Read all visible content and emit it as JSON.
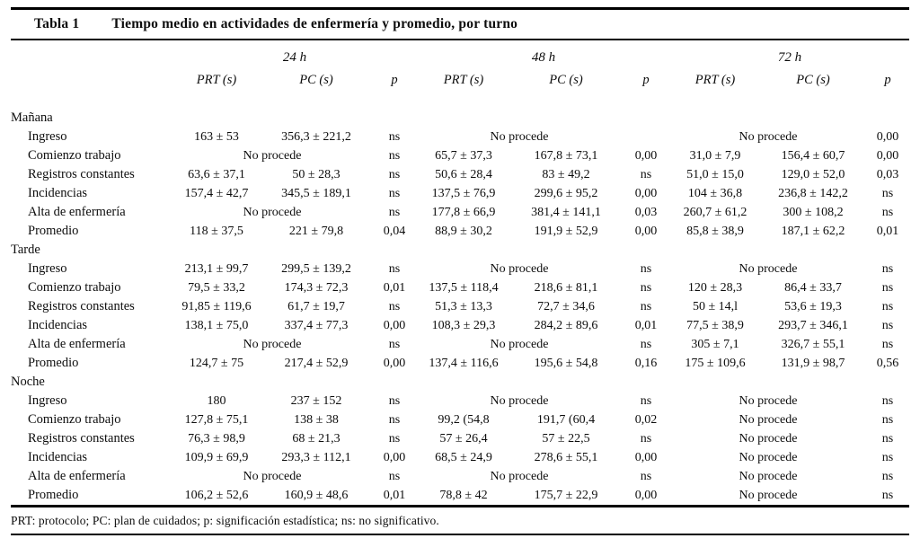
{
  "table": {
    "label": "Tabla 1",
    "title": "Tiempo medio en actividades de enfermería y promedio, por turno",
    "col_groups": [
      "24 h",
      "48 h",
      "72 h"
    ],
    "sub_headers": [
      "PRT (s)",
      "PC (s)",
      "p"
    ],
    "no_data_text": "No procede",
    "sections": [
      {
        "name": "Mañana",
        "rows": [
          {
            "label": "Ingreso",
            "g24": {
              "prt": "163 ± 53",
              "pc": "356,3 ± 221,2",
              "p": "ns"
            },
            "g48": {
              "noproc": true,
              "p": ""
            },
            "g72": {
              "noproc": true,
              "p": "0,00"
            }
          },
          {
            "label": "Comienzo trabajo",
            "g24": {
              "noproc": true,
              "p": "ns"
            },
            "g48": {
              "prt": "65,7 ± 37,3",
              "pc": "167,8 ± 73,1",
              "p": "0,00"
            },
            "g72": {
              "prt": "31,0 ± 7,9",
              "pc": "156,4 ± 60,7",
              "p": "0,00"
            }
          },
          {
            "label": "Registros constantes",
            "g24": {
              "prt": "63,6 ± 37,1",
              "pc": "50 ± 28,3",
              "p": "ns"
            },
            "g48": {
              "prt": "50,6 ± 28,4",
              "pc": "83 ± 49,2",
              "p": "ns"
            },
            "g72": {
              "prt": "51,0 ± 15,0",
              "pc": "129,0 ± 52,0",
              "p": "0,03"
            }
          },
          {
            "label": "Incidencias",
            "g24": {
              "prt": "157,4 ± 42,7",
              "pc": "345,5 ± 189,1",
              "p": "ns"
            },
            "g48": {
              "prt": "137,5 ± 76,9",
              "pc": "299,6 ± 95,2",
              "p": "0,00"
            },
            "g72": {
              "prt": "104 ± 36,8",
              "pc": "236,8 ± 142,2",
              "p": "ns"
            }
          },
          {
            "label": "Alta de enfermería",
            "g24": {
              "noproc": true,
              "p": "ns"
            },
            "g48": {
              "prt": "177,8 ± 66,9",
              "pc": "381,4 ± 141,1",
              "p": "0,03"
            },
            "g72": {
              "prt": "260,7 ± 61,2",
              "pc": "300 ± 108,2",
              "p": "ns"
            }
          },
          {
            "label": "Promedio",
            "g24": {
              "prt": "118 ± 37,5",
              "pc": "221 ± 79,8",
              "p": "0,04"
            },
            "g48": {
              "prt": "88,9 ± 30,2",
              "pc": "191,9 ± 52,9",
              "p": "0,00"
            },
            "g72": {
              "prt": "85,8 ± 38,9",
              "pc": "187,1 ± 62,2",
              "p": "0,01"
            }
          }
        ]
      },
      {
        "name": "Tarde",
        "rows": [
          {
            "label": "Ingreso",
            "g24": {
              "prt": "213,1 ± 99,7",
              "pc": "299,5 ± 139,2",
              "p": "ns"
            },
            "g48": {
              "noproc": true,
              "p": "ns"
            },
            "g72": {
              "noproc": true,
              "p": "ns"
            }
          },
          {
            "label": "Comienzo trabajo",
            "g24": {
              "prt": "79,5 ± 33,2",
              "pc": "174,3 ± 72,3",
              "p": "0,01"
            },
            "g48": {
              "prt": "137,5 ± 118,4",
              "pc": "218,6 ± 81,1",
              "p": "ns"
            },
            "g72": {
              "prt": "120 ± 28,3",
              "pc": "86,4 ± 33,7",
              "p": "ns"
            }
          },
          {
            "label": "Registros constantes",
            "g24": {
              "prt": "91,85 ± 119,6",
              "pc": "61,7 ± 19,7",
              "p": "ns"
            },
            "g48": {
              "prt": "51,3 ± 13,3",
              "pc": "72,7 ± 34,6",
              "p": "ns"
            },
            "g72": {
              "prt": "50 ± 14,l",
              "pc": "53,6 ± 19,3",
              "p": "ns"
            }
          },
          {
            "label": "Incidencias",
            "g24": {
              "prt": "138,1 ± 75,0",
              "pc": "337,4 ± 77,3",
              "p": "0,00"
            },
            "g48": {
              "prt": "108,3 ± 29,3",
              "pc": "284,2 ± 89,6",
              "p": "0,01"
            },
            "g72": {
              "prt": "77,5 ± 38,9",
              "pc": "293,7 ± 346,1",
              "p": "ns"
            }
          },
          {
            "label": "Alta de enfermería",
            "g24": {
              "noproc": true,
              "p": "ns"
            },
            "g48": {
              "noproc": true,
              "p": "ns"
            },
            "g72": {
              "prt": "305 ± 7,1",
              "pc": "326,7 ± 55,1",
              "p": "ns"
            }
          },
          {
            "label": "Promedio",
            "g24": {
              "prt": "124,7 ± 75",
              "pc": "217,4 ± 52,9",
              "p": "0,00"
            },
            "g48": {
              "prt": "137,4 ± 116,6",
              "pc": "195,6 ± 54,8",
              "p": "0,16"
            },
            "g72": {
              "prt": "175 ± 109,6",
              "pc": "131,9 ± 98,7",
              "p": "0,56"
            }
          }
        ]
      },
      {
        "name": "Noche",
        "rows": [
          {
            "label": "Ingreso",
            "g24": {
              "prt": "180",
              "pc": "237 ± 152",
              "p": "ns"
            },
            "g48": {
              "noproc": true,
              "p": "ns"
            },
            "g72": {
              "noproc": true,
              "p": "ns"
            }
          },
          {
            "label": "Comienzo trabajo",
            "g24": {
              "prt": "127,8 ± 75,1",
              "pc": "138 ± 38",
              "p": "ns"
            },
            "g48": {
              "prt": "99,2 (54,8",
              "pc": "191,7 (60,4",
              "p": "0,02"
            },
            "g72": {
              "noproc": true,
              "p": "ns"
            }
          },
          {
            "label": "Registros constantes",
            "g24": {
              "prt": "76,3 ± 98,9",
              "pc": "68 ± 21,3",
              "p": "ns"
            },
            "g48": {
              "prt": "57 ± 26,4",
              "pc": "57 ± 22,5",
              "p": "ns"
            },
            "g72": {
              "noproc": true,
              "p": "ns"
            }
          },
          {
            "label": "Incidencias",
            "g24": {
              "prt": "109,9 ± 69,9",
              "pc": "293,3 ± 112,1",
              "p": "0,00"
            },
            "g48": {
              "prt": "68,5 ± 24,9",
              "pc": "278,6 ± 55,1",
              "p": "0,00"
            },
            "g72": {
              "noproc": true,
              "p": "ns"
            }
          },
          {
            "label": "Alta de enfermería",
            "g24": {
              "noproc": true,
              "p": "ns"
            },
            "g48": {
              "noproc": true,
              "p": "ns"
            },
            "g72": {
              "noproc": true,
              "p": "ns"
            }
          },
          {
            "label": "Promedio",
            "g24": {
              "prt": "106,2 ± 52,6",
              "pc": "160,9 ± 48,6",
              "p": "0,01"
            },
            "g48": {
              "prt": "78,8 ± 42",
              "pc": "175,7 ± 22,9",
              "p": "0,00"
            },
            "g72": {
              "noproc": true,
              "p": "ns"
            }
          }
        ]
      }
    ],
    "footnote": "PRT: protocolo; PC: plan de cuidados; p: significación estadística; ns: no significativo."
  }
}
